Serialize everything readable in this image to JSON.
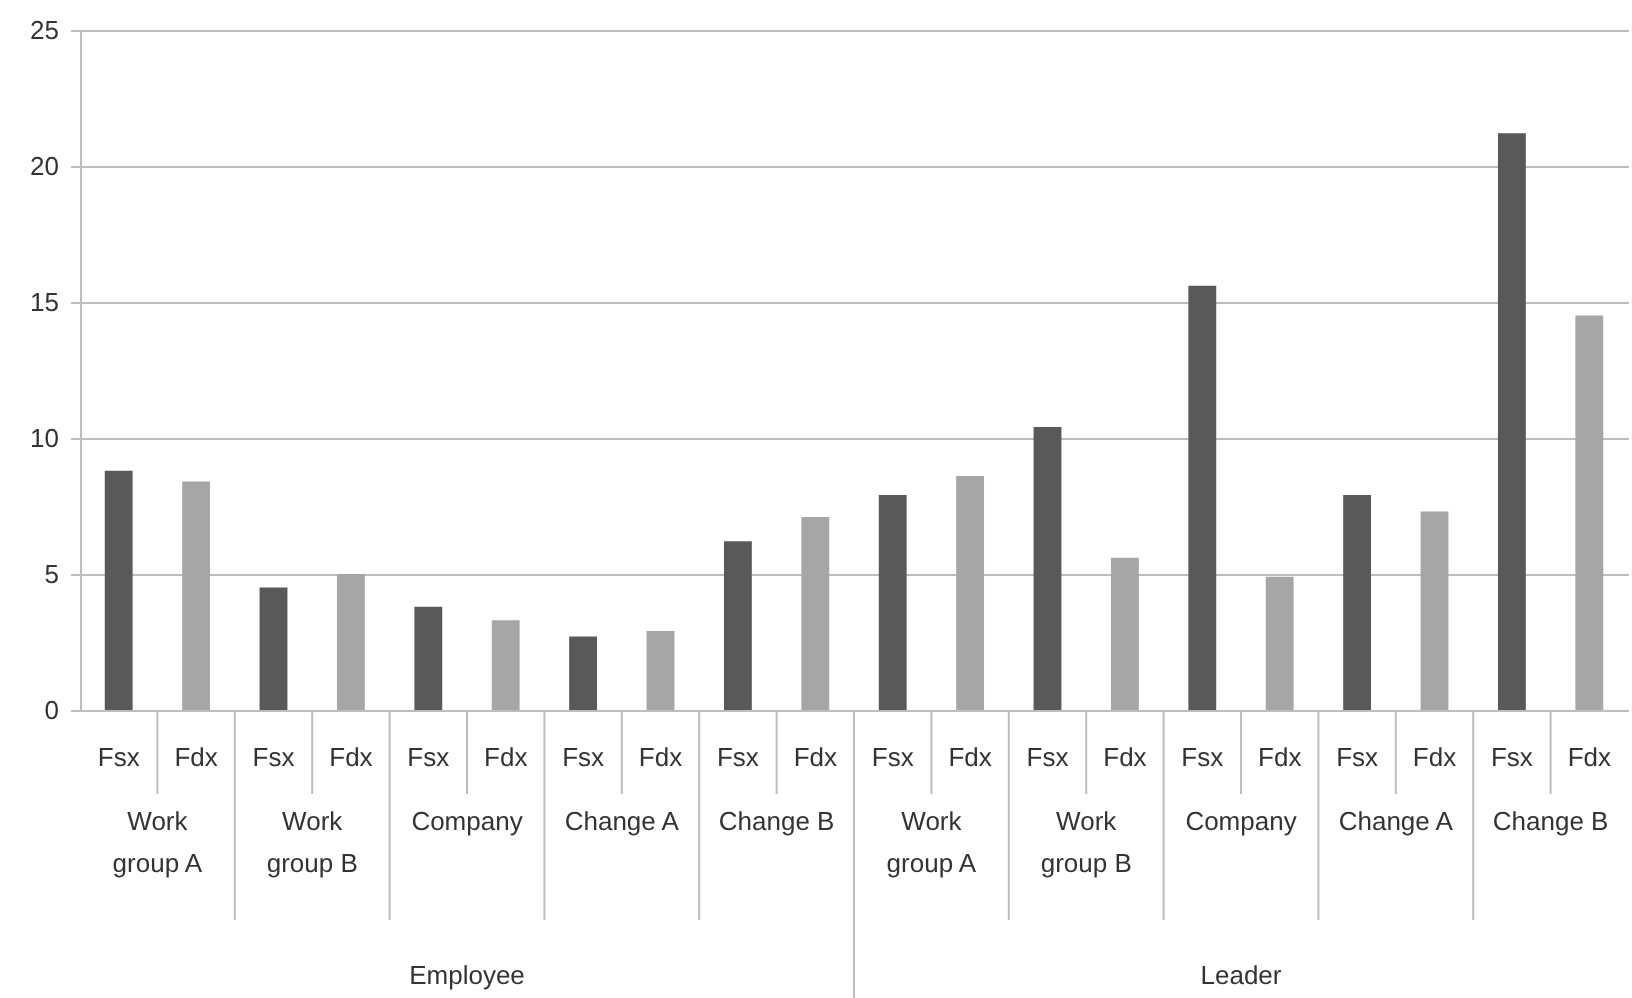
{
  "chart_data": {
    "type": "bar",
    "categories": [
      "Fsx",
      "Fdx",
      "Fsx",
      "Fdx",
      "Fsx",
      "Fdx",
      "Fsx",
      "Fdx",
      "Fsx",
      "Fdx",
      "Fsx",
      "Fdx",
      "Fsx",
      "Fdx",
      "Fsx",
      "Fdx",
      "Fsx",
      "Fdx",
      "Fsx",
      "Fdx"
    ],
    "values": [
      8.8,
      8.4,
      4.5,
      5.0,
      3.8,
      3.3,
      2.7,
      2.9,
      6.2,
      7.1,
      7.9,
      8.6,
      10.4,
      5.6,
      15.6,
      4.9,
      7.9,
      7.3,
      21.2,
      14.5
    ],
    "colors": [
      "#595959",
      "#a6a6a6",
      "#595959",
      "#a6a6a6",
      "#595959",
      "#a6a6a6",
      "#595959",
      "#a6a6a6",
      "#595959",
      "#a6a6a6",
      "#595959",
      "#a6a6a6",
      "#595959",
      "#a6a6a6",
      "#595959",
      "#a6a6a6",
      "#595959",
      "#a6a6a6",
      "#595959",
      "#a6a6a6"
    ],
    "annotations": [
      "Work group A",
      "Work group B",
      "Company",
      "Change A",
      "Change B",
      "Work group A",
      "Work group B",
      "Company",
      "Change A",
      "Change B",
      "Employee",
      "Leader"
    ],
    "ylim": [
      0,
      25
    ],
    "yticks": [
      0,
      5,
      10,
      15,
      20,
      25
    ],
    "grid": "y"
  }
}
